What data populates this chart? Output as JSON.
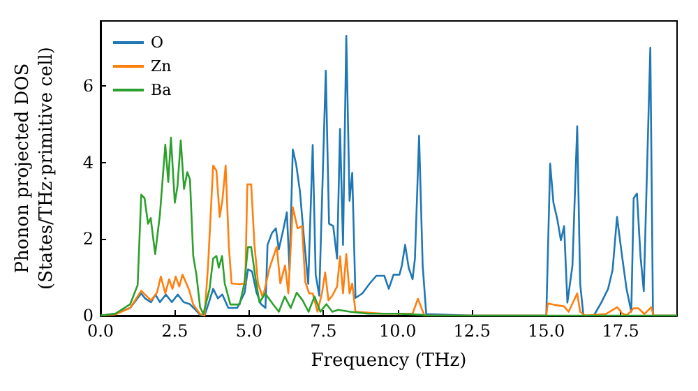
{
  "chart_data": {
    "type": "line",
    "xlabel": "Frequency (THz)",
    "ylabel": "Phonon projected DOS\n(States/THz·primitive cell)",
    "xlim": [
      0,
      19.4
    ],
    "ylim": [
      0,
      7.7
    ],
    "xticks": [
      {
        "value": 0,
        "label": "0.0"
      },
      {
        "value": 2.5,
        "label": "2.5"
      },
      {
        "value": 5,
        "label": "5.0"
      },
      {
        "value": 7.5,
        "label": "7.5"
      },
      {
        "value": 10,
        "label": "10.0"
      },
      {
        "value": 12.5,
        "label": "12.5"
      },
      {
        "value": 15,
        "label": "15.0"
      },
      {
        "value": 17.5,
        "label": "17.5"
      }
    ],
    "yticks": [
      0,
      2,
      4,
      6
    ],
    "grid": false,
    "legend": "top left",
    "series": [
      {
        "name": "O",
        "color": "#1f77b4",
        "x": [
          0,
          0.5,
          1.0,
          1.37,
          1.5,
          1.7,
          1.85,
          2.0,
          2.2,
          2.4,
          2.6,
          2.8,
          3.0,
          3.2,
          3.35,
          3.5,
          3.65,
          3.79,
          3.95,
          4.1,
          4.3,
          4.6,
          4.85,
          4.96,
          5.1,
          5.25,
          5.4,
          5.55,
          5.62,
          5.77,
          5.9,
          6.0,
          6.16,
          6.27,
          6.36,
          6.47,
          6.58,
          6.71,
          6.83,
          6.99,
          7.14,
          7.24,
          7.36,
          7.58,
          7.69,
          7.83,
          7.96,
          8.06,
          8.16,
          8.27,
          8.38,
          8.47,
          8.58,
          8.81,
          9.05,
          9.28,
          9.55,
          9.7,
          9.86,
          10.06,
          10.14,
          10.25,
          10.37,
          10.5,
          10.58,
          10.72,
          10.84,
          10.96,
          12.5,
          15.0,
          15.13,
          15.24,
          15.37,
          15.49,
          15.6,
          15.71,
          15.88,
          16.04,
          16.14,
          16.25,
          16.6,
          16.85,
          17.08,
          17.23,
          17.38,
          17.55,
          17.7,
          17.86,
          17.94,
          18.05,
          18.17,
          18.28,
          18.5,
          18.59,
          19.4
        ],
        "values": [
          0,
          0.05,
          0.2,
          0.58,
          0.45,
          0.35,
          0.55,
          0.35,
          0.55,
          0.35,
          0.55,
          0.35,
          0.3,
          0.15,
          0.02,
          0,
          0.35,
          0.7,
          0.45,
          0.55,
          0.2,
          0.2,
          0.6,
          1.21,
          1.15,
          0.6,
          0.3,
          0.2,
          1.85,
          2.16,
          2.28,
          1.73,
          2.28,
          2.7,
          1.19,
          4.34,
          3.97,
          3.25,
          2.16,
          0.83,
          4.46,
          1.07,
          0.52,
          6.4,
          2.4,
          2.34,
          1.49,
          4.88,
          1.85,
          7.31,
          3.0,
          3.73,
          0.46,
          0.58,
          0.83,
          1.04,
          1.04,
          0.7,
          1.07,
          1.07,
          1.31,
          1.85,
          1.25,
          0.95,
          1.49,
          4.7,
          1.31,
          0.04,
          0,
          0,
          3.97,
          2.95,
          2.52,
          1.97,
          2.34,
          0.34,
          1.31,
          4.95,
          0.83,
          0,
          0,
          0.34,
          0.7,
          1.19,
          2.58,
          1.55,
          0.7,
          0.1,
          3.07,
          3.19,
          1.55,
          0.64,
          7.0,
          0,
          0
        ]
      },
      {
        "name": "Zn",
        "color": "#ff7f0e",
        "x": [
          0,
          0.5,
          1.0,
          1.37,
          1.5,
          1.7,
          1.9,
          2.03,
          2.18,
          2.31,
          2.42,
          2.53,
          2.65,
          2.76,
          2.89,
          2.99,
          3.12,
          3.35,
          3.5,
          3.62,
          3.79,
          3.9,
          4.01,
          4.1,
          4.21,
          4.32,
          4.41,
          4.68,
          4.87,
          4.94,
          5.07,
          5.18,
          5.3,
          5.46,
          5.69,
          5.93,
          6.05,
          6.21,
          6.32,
          6.47,
          6.63,
          6.78,
          6.89,
          7.02,
          7.14,
          7.3,
          7.45,
          7.56,
          7.67,
          7.8,
          7.96,
          8.06,
          8.16,
          8.27,
          8.38,
          8.47,
          8.58,
          9.5,
          10.5,
          10.68,
          10.9,
          12.5,
          15.0,
          15.05,
          15.29,
          15.6,
          15.75,
          16.04,
          16.14,
          16.3,
          17.0,
          17.39,
          17.55,
          17.7,
          17.94,
          18.1,
          18.3,
          18.53,
          18.61,
          19.4
        ],
        "values": [
          0,
          0.03,
          0.2,
          0.65,
          0.55,
          0.4,
          0.6,
          1.02,
          0.58,
          0.95,
          0.7,
          1.02,
          0.76,
          1.07,
          0.84,
          0.65,
          0.29,
          0.04,
          0,
          1.31,
          3.92,
          3.79,
          2.58,
          3.0,
          3.92,
          1.79,
          0.84,
          0.82,
          0.84,
          3.43,
          3.43,
          1.85,
          0.84,
          0.47,
          1.25,
          1.8,
          0.84,
          1.31,
          0.58,
          2.83,
          2.28,
          2.34,
          0.88,
          0.58,
          0.58,
          0.1,
          0.58,
          1.13,
          0.4,
          0.52,
          0.76,
          1.55,
          0.58,
          1.61,
          0.58,
          0.84,
          0.1,
          0.05,
          0.05,
          0.44,
          0,
          0,
          0,
          0.32,
          0.28,
          0.24,
          0.1,
          0.58,
          0.1,
          0,
          0.04,
          0.22,
          0.06,
          0,
          0.19,
          0.19,
          0.04,
          0.22,
          0,
          0
        ]
      },
      {
        "name": "Ba",
        "color": "#2ca02c",
        "x": [
          0,
          0.5,
          1.0,
          1.25,
          1.37,
          1.48,
          1.6,
          1.69,
          1.75,
          1.84,
          2.0,
          2.18,
          2.28,
          2.37,
          2.5,
          2.59,
          2.7,
          2.81,
          2.92,
          3.01,
          3.12,
          3.23,
          3.35,
          3.46,
          3.67,
          3.79,
          3.9,
          3.98,
          4.09,
          4.18,
          4.37,
          4.68,
          4.84,
          4.96,
          5.07,
          5.22,
          5.35,
          5.54,
          5.8,
          6.0,
          6.2,
          6.4,
          6.6,
          6.8,
          7.0,
          7.2,
          7.4,
          7.6,
          7.8,
          8.0,
          8.4,
          9.0,
          10.0,
          10.8,
          11.0,
          19.4
        ],
        "values": [
          0,
          0.05,
          0.3,
          0.8,
          3.16,
          3.07,
          2.4,
          2.55,
          2.16,
          1.61,
          2.65,
          4.47,
          3.49,
          4.65,
          2.95,
          3.38,
          4.58,
          3.31,
          3.75,
          3.56,
          1.56,
          1.05,
          0.22,
          0.04,
          0.7,
          1.49,
          1.56,
          1.25,
          1.56,
          0.84,
          0.29,
          0.29,
          0.84,
          1.79,
          1.79,
          0.95,
          0.34,
          0.58,
          0.3,
          0.1,
          0.5,
          0.2,
          0.6,
          0.4,
          0.1,
          0.5,
          0.1,
          0.3,
          0.1,
          0.15,
          0.1,
          0.05,
          0.05,
          0.02,
          0,
          0
        ]
      }
    ]
  }
}
